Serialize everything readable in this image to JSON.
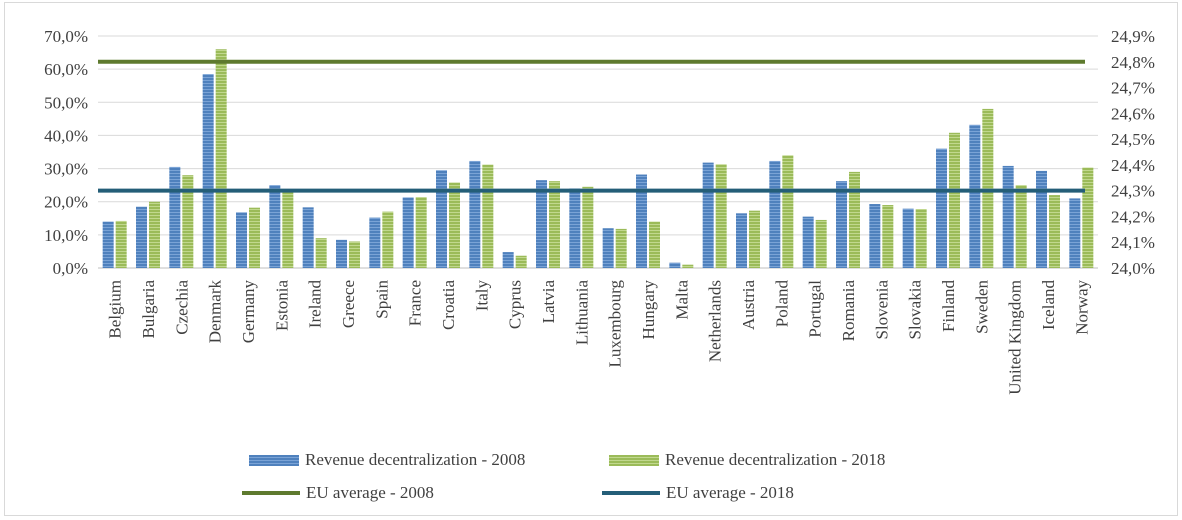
{
  "chart_data": {
    "type": "bar",
    "categories": [
      "Belgium",
      "Bulgaria",
      "Czechia",
      "Denmark",
      "Germany",
      "Estonia",
      "Ireland",
      "Greece",
      "Spain",
      "France",
      "Croatia",
      "Italy",
      "Cyprus",
      "Latvia",
      "Lithuania",
      "Luxembourg",
      "Hungary",
      "Malta",
      "Netherlands",
      "Austria",
      "Poland",
      "Portugal",
      "Romania",
      "Slovenia",
      "Slovakia",
      "Finland",
      "Sweden",
      "United Kingdom",
      "Iceland",
      "Norway"
    ],
    "series": [
      {
        "name": "Revenue decentralization  - 2008",
        "axis": "left",
        "color": "#4f81bd",
        "values": [
          14.0,
          18.5,
          30.5,
          58.5,
          16.8,
          25.0,
          18.3,
          8.5,
          15.2,
          21.3,
          29.5,
          32.3,
          4.8,
          26.5,
          24.0,
          12.0,
          28.2,
          1.6,
          31.8,
          16.5,
          32.3,
          15.5,
          26.2,
          19.3,
          17.9,
          36.0,
          43.2,
          30.8,
          29.3,
          21.0
        ]
      },
      {
        "name": "Revenue decentralization - 2018",
        "axis": "left",
        "color": "#9bbb59",
        "values": [
          14.2,
          20.0,
          28.0,
          66.0,
          18.2,
          23.5,
          9.0,
          8.0,
          17.0,
          21.4,
          25.8,
          31.2,
          3.7,
          26.2,
          24.5,
          11.8,
          14.0,
          1.0,
          31.3,
          17.3,
          34.0,
          14.5,
          29.0,
          19.0,
          17.8,
          40.8,
          48.0,
          25.0,
          22.0,
          30.3
        ]
      },
      {
        "name": "EU average - 2008",
        "type": "line",
        "axis": "right",
        "color": "#5e7a2e",
        "value": 24.8
      },
      {
        "name": "EU average  - 2018",
        "type": "line",
        "axis": "right",
        "color": "#245e78",
        "value": 24.3
      }
    ],
    "y_left": {
      "ylim": [
        0,
        70
      ],
      "ticks": [
        "0,0%",
        "10,0%",
        "20,0%",
        "30,0%",
        "40,0%",
        "50,0%",
        "60,0%",
        "70,0%"
      ]
    },
    "y_right": {
      "ylim": [
        24.0,
        24.9
      ],
      "ticks": [
        "24,0%",
        "24,1%",
        "24,2%",
        "24,3%",
        "24,4%",
        "24,5%",
        "24,6%",
        "24,7%",
        "24,8%",
        "24,9%"
      ]
    },
    "grid": true,
    "legend": "bottom"
  }
}
